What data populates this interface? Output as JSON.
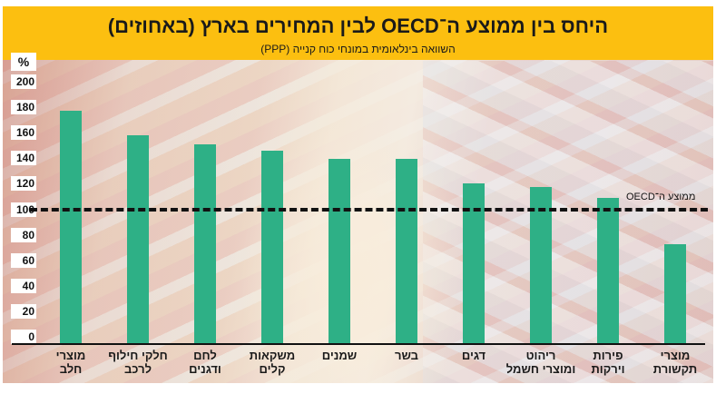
{
  "header": {
    "title": "היחס בין ממוצע ה־OECD לבין המחירים בארץ (באחוזים)",
    "subtitle": "השוואה בינלאומית במונחי כוח קנייה (PPP)"
  },
  "axis": {
    "unit": "%",
    "ticks": [
      "200",
      "180",
      "160",
      "140",
      "120",
      "100",
      "80",
      "60",
      "40",
      "20",
      "0"
    ]
  },
  "reference": {
    "label": "ממוצע ה־OECD",
    "value": 100
  },
  "colors": {
    "header": "#fcbf10",
    "bar": "#2eb086",
    "reference_line": "#111111"
  },
  "categories": [
    {
      "line1": "מוצרי",
      "line2": "חלב",
      "value": 174
    },
    {
      "line1": "חלקי חילוף",
      "line2": "לרכב",
      "value": 156
    },
    {
      "line1": "לחם",
      "line2": "ודגנים",
      "value": 149
    },
    {
      "line1": "משקאות",
      "line2": "קלים",
      "value": 144
    },
    {
      "line1": "שמנים",
      "line2": "",
      "value": 138
    },
    {
      "line1": "בשר",
      "line2": "",
      "value": 138
    },
    {
      "line1": "דגים",
      "line2": "",
      "value": 120
    },
    {
      "line1": "ריהוט",
      "line2": "ומוצרי חשמל",
      "value": 117
    },
    {
      "line1": "פירות",
      "line2": "וירקות",
      "value": 109
    },
    {
      "line1": "מוצרי",
      "line2": "תקשורת",
      "value": 74
    }
  ],
  "chart_data": {
    "type": "bar",
    "title": "היחס בין ממוצע ה־OECD לבין המחירים בארץ (באחוזים)",
    "subtitle": "השוואה בינלאומית במונחי כוח קנייה (PPP)",
    "categories": [
      "מוצרי חלב",
      "חלקי חילוף לרכב",
      "לחם ודגנים",
      "משקאות קלים",
      "שמנים",
      "בשר",
      "דגים",
      "ריהוט ומוצרי חשמל",
      "פירות וירקות",
      "מוצרי תקשורת"
    ],
    "values": [
      174,
      156,
      149,
      144,
      138,
      138,
      120,
      117,
      109,
      74
    ],
    "xlabel": "",
    "ylabel": "%",
    "ylim": [
      0,
      200
    ],
    "yticks": [
      0,
      20,
      40,
      60,
      80,
      100,
      120,
      140,
      160,
      180,
      200
    ],
    "reference_line": {
      "value": 100,
      "label": "ממוצע ה־OECD",
      "style": "dashed"
    },
    "grid": false,
    "legend": null
  }
}
